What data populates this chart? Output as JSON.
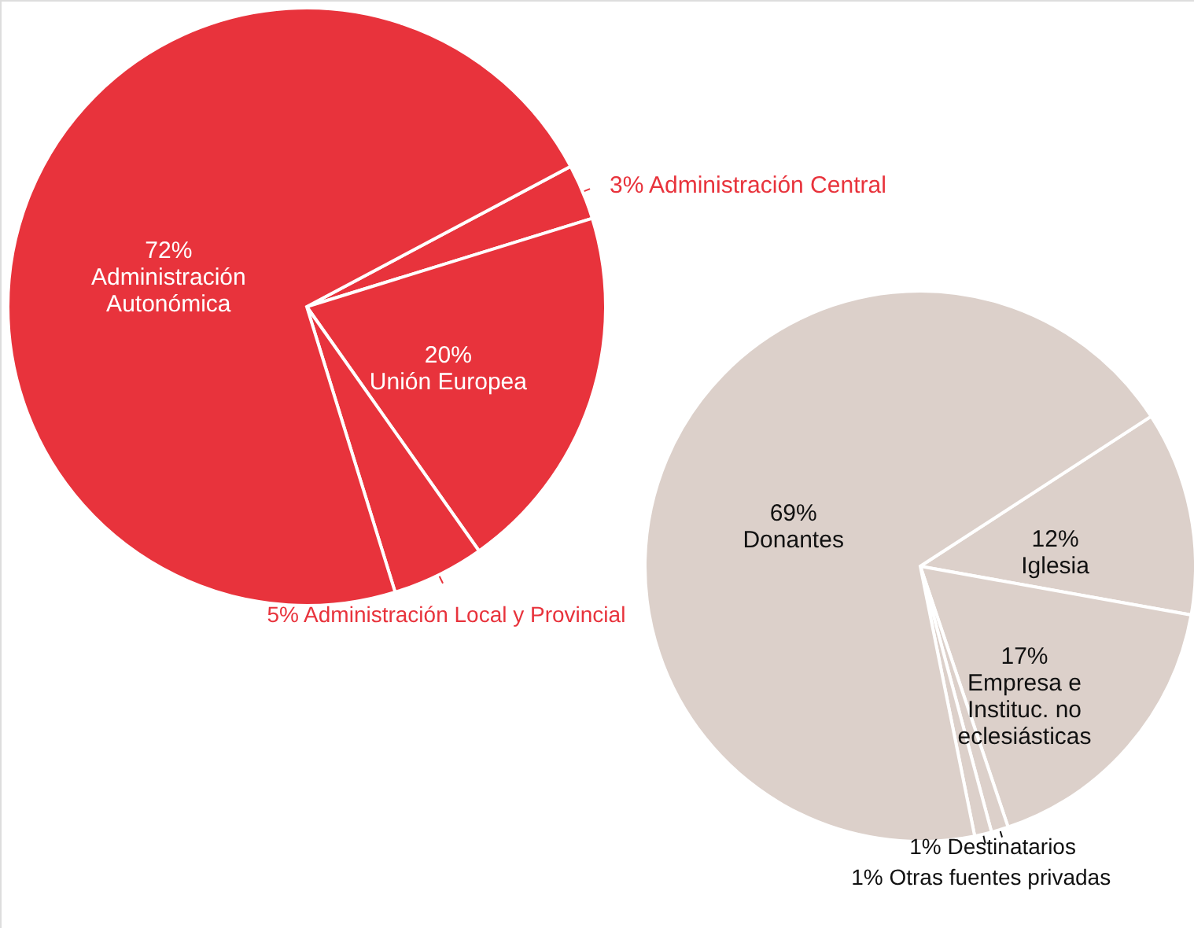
{
  "chart_data": [
    {
      "type": "pie",
      "categories": [
        "Administración Central",
        "Unión Europea",
        "Administración Local y Provincial",
        "Administración Autonómica"
      ],
      "values": [
        3,
        20,
        5,
        72
      ],
      "value_labels": [
        "3%",
        "20%",
        "5%",
        "72%"
      ],
      "colors": [
        "#e8333c",
        "#e8333c",
        "#e8333c",
        "#e8333c"
      ]
    },
    {
      "type": "pie",
      "categories": [
        "Iglesia",
        "Empresa e Instituc. no eclesiásticas",
        "Destinatarios",
        "Otras fuentes privadas",
        "Donantes"
      ],
      "values": [
        12,
        17,
        1,
        1,
        69
      ],
      "value_labels": [
        "12%",
        "17%",
        "1%",
        "1%",
        "69%"
      ],
      "colors": [
        "#dcd0ca",
        "#dcd0ca",
        "#dcd0ca",
        "#dcd0ca",
        "#dcd0ca"
      ]
    }
  ]
}
